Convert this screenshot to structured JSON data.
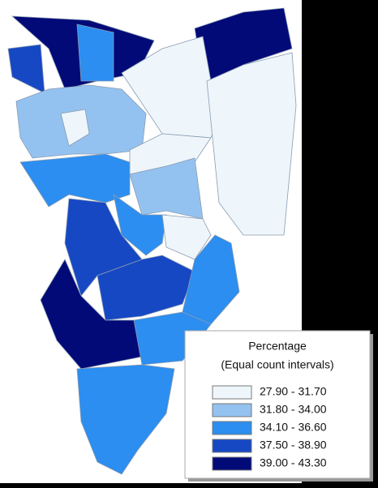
{
  "legend": {
    "title": [
      "Percentage",
      "(Equal count intervals)"
    ],
    "classes": [
      {
        "label": "27.90 - 31.70",
        "color": "#eef6fc"
      },
      {
        "label": "31.80 - 34.00",
        "color": "#94c2f0"
      },
      {
        "label": "34.10 - 36.60",
        "color": "#2b8ef0"
      },
      {
        "label": "37.50 - 38.90",
        "color": "#1648c4"
      },
      {
        "label": "39.00 - 43.30",
        "color": "#020a78"
      }
    ]
  }
}
